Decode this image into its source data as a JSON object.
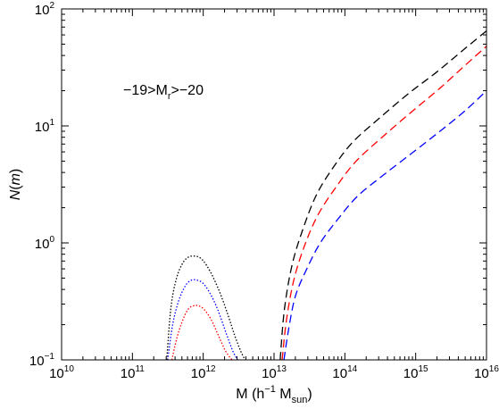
{
  "chart_data": {
    "type": "line",
    "annotation": {
      "text_parts": [
        {
          "text": "−19>M",
          "sub": false
        },
        {
          "text": "r",
          "sub": true
        },
        {
          "text": ">−20",
          "sub": false
        }
      ]
    },
    "xlabel_parts": [
      {
        "text": "M (h",
        "style": "normal"
      },
      {
        "text": "−1",
        "style": "sup"
      },
      {
        "text": " M",
        "style": "normal"
      },
      {
        "text": "sun",
        "style": "sub"
      },
      {
        "text": ")",
        "style": "normal"
      }
    ],
    "ylabel_parts": [
      {
        "text": "N",
        "style": "italic"
      },
      {
        "text": "(",
        "style": "normal"
      },
      {
        "text": "m",
        "style": "italic"
      },
      {
        "text": ")",
        "style": "normal"
      }
    ],
    "x_scale": "log",
    "y_scale": "log",
    "xlim": [
      10000000000.0,
      1e+16
    ],
    "ylim": [
      0.1,
      100
    ],
    "x_ticks": [
      {
        "base": "10",
        "exp": "10",
        "value": 10000000000.0
      },
      {
        "base": "10",
        "exp": "11",
        "value": 100000000000.0
      },
      {
        "base": "10",
        "exp": "12",
        "value": 1000000000000.0
      },
      {
        "base": "10",
        "exp": "13",
        "value": 10000000000000.0
      },
      {
        "base": "10",
        "exp": "14",
        "value": 100000000000000.0
      },
      {
        "base": "10",
        "exp": "15",
        "value": 1000000000000000.0
      },
      {
        "base": "10",
        "exp": "16",
        "value": 1e+16
      }
    ],
    "y_ticks": [
      {
        "base": "10",
        "exp": "−1",
        "value": 0.1
      },
      {
        "base": "10",
        "exp": "0",
        "value": 1
      },
      {
        "base": "10",
        "exp": "1",
        "value": 10
      },
      {
        "base": "10",
        "exp": "2",
        "value": 100
      }
    ],
    "series": [
      {
        "color": "#000000",
        "dash": "dotted",
        "x": [
          305000000000.0,
          350000000000.0,
          420000000000.0,
          520000000000.0,
          630000000000.0,
          770000000000.0,
          920000000000.0,
          1120000000000.0,
          1400000000000.0,
          1800000000000.0,
          2300000000000.0,
          2800000000000.0,
          3400000000000.0,
          3900000000000.0
        ],
        "y": [
          0.1,
          0.28,
          0.5,
          0.68,
          0.76,
          0.77,
          0.74,
          0.64,
          0.5,
          0.35,
          0.23,
          0.16,
          0.118,
          0.1
        ]
      },
      {
        "color": "#0000ff",
        "dash": "dotted",
        "x": [
          315000000000.0,
          370000000000.0,
          450000000000.0,
          560000000000.0,
          680000000000.0,
          820000000000.0,
          1000000000000.0,
          1250000000000.0,
          1600000000000.0,
          2100000000000.0,
          2600000000000.0,
          3050000000000.0
        ],
        "y": [
          0.1,
          0.2,
          0.32,
          0.43,
          0.48,
          0.48,
          0.45,
          0.37,
          0.27,
          0.17,
          0.12,
          0.1
        ]
      },
      {
        "color": "#ff0000",
        "dash": "dotted",
        "x": [
          360000000000.0,
          420000000000.0,
          500000000000.0,
          610000000000.0,
          730000000000.0,
          860000000000.0,
          1030000000000.0,
          1300000000000.0,
          1650000000000.0,
          2050000000000.0,
          2450000000000.0,
          2650000000000.0
        ],
        "y": [
          0.1,
          0.15,
          0.21,
          0.27,
          0.29,
          0.29,
          0.27,
          0.22,
          0.16,
          0.12,
          0.103,
          0.1
        ]
      },
      {
        "color": "#000000",
        "dash": "dashed",
        "x": [
          12200000000000.0,
          14000000000000.0,
          18000000000000.0,
          26000000000000.0,
          40000000000000.0,
          70000000000000.0,
          130000000000000.0,
          300000000000000.0,
          800000000000000.0,
          2000000000000000.0,
          5000000000000000.0,
          1e+16
        ],
        "y": [
          0.1,
          0.27,
          0.65,
          1.35,
          2.6,
          4.5,
          7.3,
          11.5,
          19,
          29,
          46,
          65
        ]
      },
      {
        "color": "#ff0000",
        "dash": "dashed",
        "x": [
          13000000000000.0,
          15000000000000.0,
          19000000000000.0,
          27000000000000.0,
          42000000000000.0,
          75000000000000.0,
          140000000000000.0,
          320000000000000.0,
          850000000000000.0,
          2100000000000000.0,
          5000000000000000.0,
          1e+16
        ],
        "y": [
          0.1,
          0.22,
          0.48,
          0.95,
          1.75,
          3.0,
          4.9,
          7.8,
          13,
          20.5,
          33,
          48
        ]
      },
      {
        "color": "#0000ff",
        "dash": "dashed",
        "x": [
          13800000000000.0,
          16000000000000.0,
          20000000000000.0,
          29000000000000.0,
          45000000000000.0,
          80000000000000.0,
          150000000000000.0,
          350000000000000.0,
          900000000000000.0,
          2200000000000000.0,
          5000000000000000.0,
          1e+16
        ],
        "y": [
          0.1,
          0.18,
          0.35,
          0.6,
          1.0,
          1.6,
          2.5,
          3.8,
          5.9,
          9.0,
          13.5,
          20
        ]
      }
    ]
  }
}
